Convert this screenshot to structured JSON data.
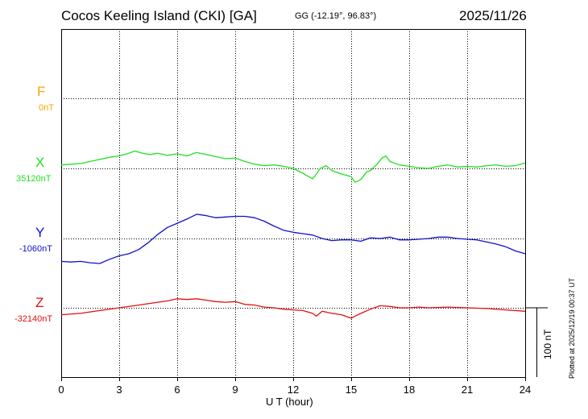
{
  "header": {
    "title": "Cocos Keeling Island (CKI)  [GA]",
    "coords": "GG (-12.19°,  96.83°)",
    "date": "2025/11/26"
  },
  "footer": {
    "plotted": "Plotted at 2025/12/19 00:37 UT"
  },
  "colors": {
    "F": "#f0a800",
    "X": "#22e022",
    "Y": "#1010cc",
    "Z": "#e01010"
  },
  "chart_data": {
    "type": "line",
    "title": "Cocos Keeling Island (CKI)  [GA]",
    "xlabel": "U T (hour)",
    "xlim": [
      0,
      24
    ],
    "xticks": [
      0,
      3,
      6,
      9,
      12,
      15,
      18,
      21,
      24
    ],
    "scale": "100 nT",
    "scale_nT": 100,
    "grid": true,
    "channels": [
      {
        "name": "F",
        "baseline": "0nT",
        "x": [],
        "y": []
      },
      {
        "name": "X",
        "baseline": "35120nT",
        "x": [
          0,
          0.5,
          1,
          1.5,
          2,
          2.5,
          3,
          3.5,
          3.8,
          4.2,
          4.6,
          5,
          5.5,
          6,
          6.5,
          7,
          7.5,
          8,
          8.5,
          9,
          9.5,
          10,
          10.5,
          11,
          11.5,
          12,
          12.5,
          13,
          13.1,
          13.4,
          13.7,
          14,
          14.5,
          15,
          15.2,
          15.5,
          15.8,
          16,
          16.3,
          16.6,
          16.8,
          17,
          17.5,
          18,
          18.5,
          19,
          19.5,
          20,
          20.5,
          21,
          21.5,
          22,
          22.5,
          23,
          23.5,
          24
        ],
        "y": [
          5,
          6,
          7,
          10,
          13,
          16,
          18,
          22,
          25,
          22,
          20,
          22,
          19,
          21,
          18,
          23,
          20,
          17,
          14,
          15,
          10,
          6,
          4,
          5,
          3,
          0,
          -7,
          -15,
          -12,
          0,
          4,
          -3,
          -8,
          -12,
          -20,
          -16,
          -5,
          -3,
          5,
          15,
          18,
          10,
          5,
          3,
          1,
          0,
          3,
          5,
          2,
          3,
          2,
          4,
          5,
          3,
          4,
          8
        ]
      },
      {
        "name": "Y",
        "baseline": "-1060nT",
        "x": [
          0,
          0.5,
          1,
          1.5,
          2,
          2.5,
          3,
          3.5,
          4,
          4.5,
          5,
          5.5,
          6,
          6.5,
          7,
          7.5,
          8,
          8.5,
          9,
          9.5,
          10,
          10.5,
          11,
          11.5,
          12,
          12.5,
          13,
          13.5,
          14,
          14.5,
          15,
          15.5,
          16,
          16.5,
          17,
          17.5,
          18,
          18.5,
          19,
          19.5,
          20,
          20.5,
          21,
          21.5,
          22,
          22.5,
          23,
          23.5,
          24
        ],
        "y": [
          -33,
          -34,
          -33,
          -35,
          -36,
          -30,
          -25,
          -22,
          -16,
          -6,
          6,
          16,
          22,
          28,
          35,
          33,
          30,
          31,
          32,
          32,
          30,
          25,
          18,
          12,
          9,
          7,
          5,
          0,
          -3,
          -2,
          -2,
          -4,
          1,
          0,
          2,
          -2,
          -2,
          -1,
          0,
          2,
          2,
          0,
          -1,
          -2,
          -5,
          -8,
          -12,
          -18,
          -22
        ]
      },
      {
        "name": "Z",
        "baseline": "-32140nT",
        "x": [
          0,
          1,
          2,
          3,
          4,
          5,
          5.5,
          6,
          6.5,
          7,
          7.5,
          8,
          8.5,
          9,
          9.5,
          10,
          10.5,
          11,
          11.5,
          12,
          12.5,
          13,
          13.2,
          13.5,
          14,
          14.5,
          15,
          15.2,
          15.5,
          16,
          16.5,
          17,
          17.5,
          18,
          18.5,
          19,
          20,
          21,
          22,
          23,
          24
        ],
        "y": [
          -10,
          -8,
          -4,
          0,
          4,
          8,
          10,
          13,
          12,
          13,
          11,
          9,
          8,
          9,
          5,
          4,
          1,
          0,
          -2,
          -3,
          -4,
          -8,
          -12,
          -5,
          -8,
          -10,
          -15,
          -12,
          -8,
          -2,
          3,
          2,
          0,
          0,
          1,
          0,
          1,
          0,
          -1,
          -3,
          -5
        ]
      }
    ]
  }
}
